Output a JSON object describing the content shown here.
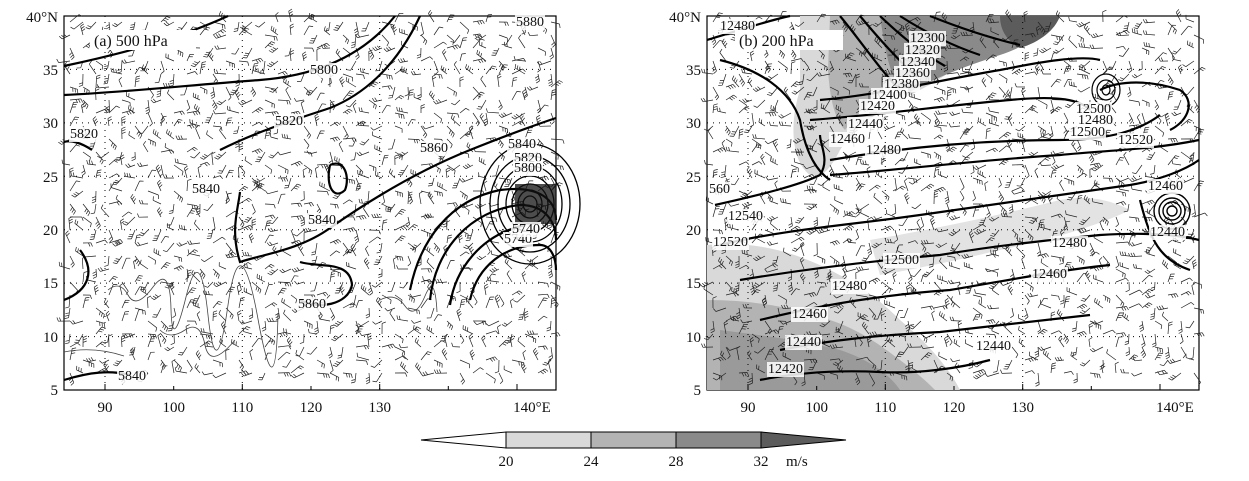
{
  "panels": [
    {
      "id": "a",
      "label": "(a) 500 hPa",
      "x_ticks": [
        "90",
        "100",
        "110",
        "120",
        "130",
        "140°E"
      ],
      "y_ticks": [
        "40°N",
        "35",
        "30",
        "25",
        "20",
        "15",
        "10",
        "5"
      ],
      "contour_labels": [
        "5800",
        "5880",
        "5820",
        "5820",
        "5860",
        "5840",
        "5820",
        "5800",
        "5840",
        "5840",
        "5740",
        "5860",
        "5840",
        "5740"
      ]
    },
    {
      "id": "b",
      "label": "(b) 200 hPa",
      "x_ticks": [
        "90",
        "100",
        "110",
        "120",
        "130",
        "140°E"
      ],
      "y_ticks": [
        "40°N",
        "35",
        "30",
        "25",
        "20",
        "15",
        "10",
        "5"
      ],
      "contour_labels": [
        "12480",
        "12300",
        "12320",
        "12340",
        "12360",
        "12380",
        "12400",
        "12420",
        "12440",
        "12460",
        "12480",
        "12500",
        "12480",
        "12500",
        "12520",
        "12460",
        "560",
        "12540",
        "12440",
        "12520",
        "12480",
        "12500",
        "12460",
        "12480",
        "12460",
        "12440",
        "12440",
        "12420"
      ]
    }
  ],
  "colorbar": {
    "ticks": [
      "20",
      "24",
      "28",
      "32"
    ],
    "unit": "m/s",
    "colors": [
      "#ffffff",
      "#d9d9d9",
      "#b3b3b3",
      "#8a8a8a",
      "#5c5c5c"
    ]
  }
}
